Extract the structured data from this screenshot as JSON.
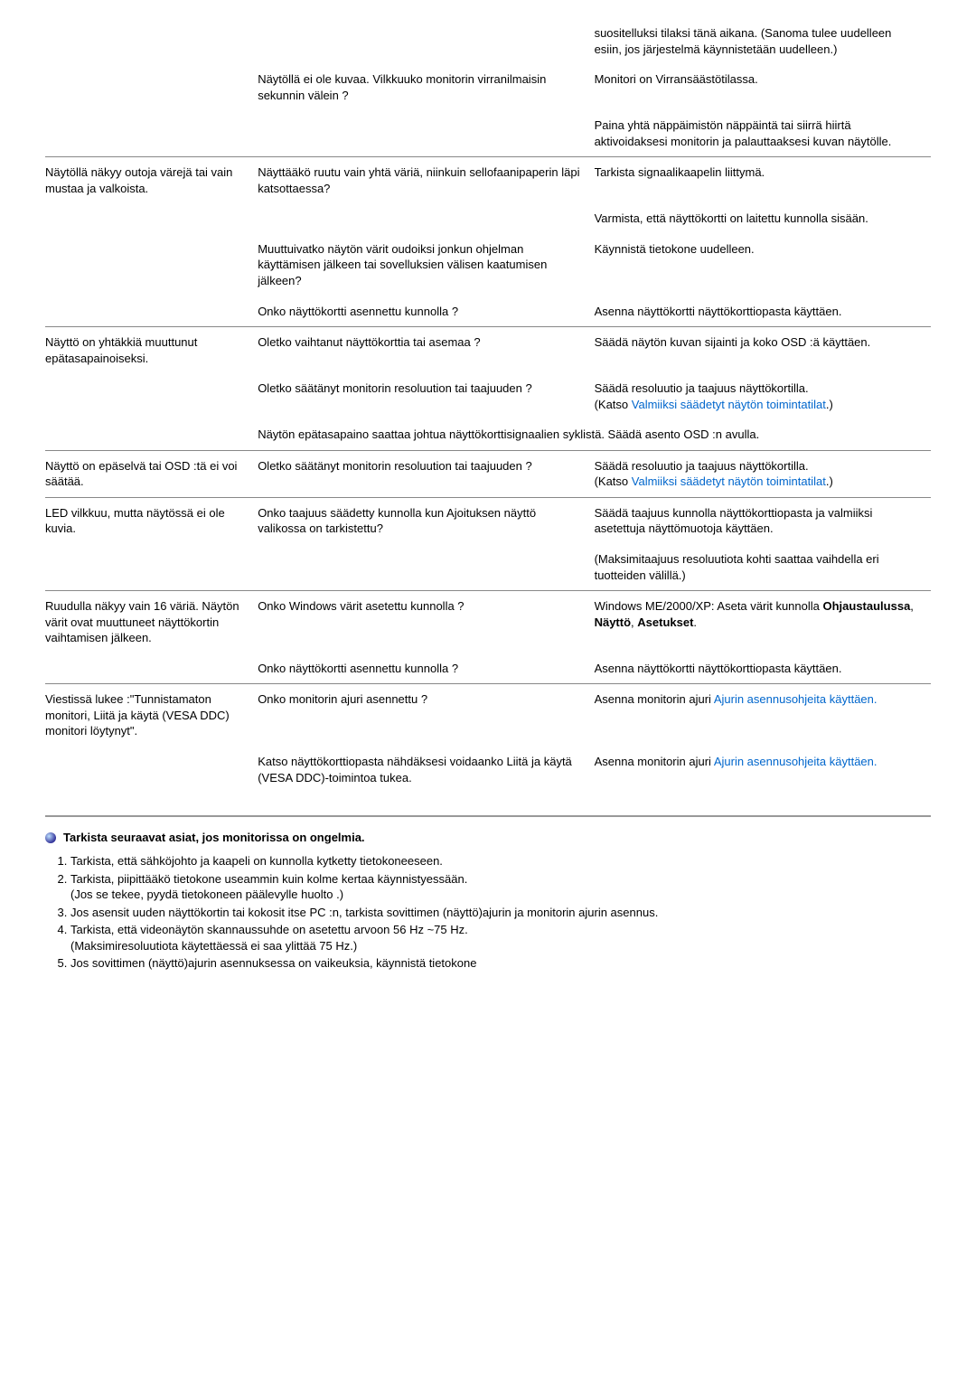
{
  "rows": [
    {
      "sep": false,
      "c1": "",
      "c2": "",
      "c3": "suositelluksi tilaksi tänä aikana. (Sanoma tulee uudelleen esiin, jos järjestelmä käynnistetään uudelleen.)"
    },
    {
      "sep": false,
      "c1": "",
      "c2": "Näytöllä ei ole kuvaa. Vilkkuuko monitorin virranilmaisin sekunnin välein ?",
      "c3": "Monitori on Virransäästötilassa."
    },
    {
      "sep": false,
      "c1": "",
      "c2": "",
      "c3": "Paina yhtä näppäimistön näppäintä tai siirrä hiirtä aktivoidaksesi monitorin ja palauttaaksesi kuvan näytölle."
    },
    {
      "sep": true,
      "c1": "Näytöllä näkyy outoja värejä tai vain mustaa ja valkoista.",
      "c2": "Näyttääkö ruutu vain yhtä väriä, niinkuin sellofaanipaperin läpi katsottaessa?",
      "c3": "Tarkista signaalikaapelin liittymä."
    },
    {
      "sep": false,
      "c1": "",
      "c2": "",
      "c3": "Varmista, että näyttökortti on laitettu kunnolla sisään."
    },
    {
      "sep": false,
      "c1": "",
      "c2": "Muuttuivatko näytön värit oudoiksi jonkun ohjelman käyttämisen jälkeen tai sovelluksien välisen kaatumisen jälkeen?",
      "c3": "Käynnistä tietokone uudelleen."
    },
    {
      "sep": false,
      "c1": "",
      "c2": "Onko näyttökortti asennettu kunnolla ?",
      "c3": "Asenna näyttökortti näyttökorttiopasta käyttäen."
    },
    {
      "sep": true,
      "c1": "Näyttö on yhtäkkiä muuttunut epätasapainoiseksi.",
      "c2": "Oletko vaihtanut näyttökorttia tai asemaa ?",
      "c3": "Säädä näytön kuvan sijainti ja koko OSD :ä käyttäen."
    },
    {
      "sep": false,
      "c1": "",
      "c2": "Oletko säätänyt monitorin resoluution tai taajuuden ?",
      "c3html": "Säädä resoluutio ja taajuus näyttökortilla.<br>(Katso <span class=\"blue\">Valmiiksi säädetyt näytön toimintatilat</span>.)"
    },
    {
      "sep": false,
      "c1": "",
      "c2span": "Näytön epätasapaino saattaa johtua näyttökorttisignaalien syklistä. Säädä asento OSD :n avulla."
    },
    {
      "sep": true,
      "c1": "Näyttö on epäselvä tai OSD :tä ei voi säätää.",
      "c2": "Oletko säätänyt monitorin resoluution tai taajuuden ?",
      "c3html": "Säädä resoluutio ja taajuus näyttökortilla.<br>(Katso <span class=\"blue\">Valmiiksi säädetyt näytön toimintatilat</span>.)"
    },
    {
      "sep": true,
      "c1": "LED vilkkuu, mutta näytössä ei ole kuvia.",
      "c2": "Onko taajuus säädetty kunnolla kun Ajoituksen näyttö valikossa on tarkistettu?",
      "c3": "Säädä taajuus kunnolla näyttökorttiopasta ja valmiiksi asetettuja näyttömuotoja käyttäen."
    },
    {
      "sep": false,
      "c1": "",
      "c2": "",
      "c3": "(Maksimitaajuus resoluutiota kohti saattaa vaihdella eri tuotteiden välillä.)"
    },
    {
      "sep": true,
      "c1": "Ruudulla näkyy vain 16 väriä. Näytön värit ovat muuttuneet näyttökortin vaihtamisen jälkeen.",
      "c2": "Onko Windows värit asetettu kunnolla ?",
      "c3html": "Windows ME/2000/XP: Aseta värit kunnolla <b>Ohjaustaulussa</b>, <b>Näyttö</b>, <b>Asetukset</b>."
    },
    {
      "sep": false,
      "c1": "",
      "c2": "Onko näyttökortti asennettu kunnolla ?",
      "c3": "Asenna näyttökortti näyttökorttiopasta käyttäen."
    },
    {
      "sep": true,
      "c1": "Viestissä lukee :\"Tunnistamaton monitori, Liitä ja käytä (VESA DDC) monitori löytynyt\".",
      "c2": "Onko monitorin ajuri asennettu ?",
      "c3html": "Asenna monitorin ajuri <span class=\"blue\">Ajurin asennusohjeita käyttäen.</span>"
    },
    {
      "sep": false,
      "c1": "",
      "c2": "Katso näyttökorttiopasta nähdäksesi voidaanko Liitä ja käytä (VESA DDC)-toimintoa tukea.",
      "c3html": "Asenna monitorin ajuri <span class=\"blue\">Ajurin asennusohjeita käyttäen.</span>"
    }
  ],
  "checkTitle": "Tarkista seuraavat asiat, jos monitorissa on ongelmia.",
  "checks": [
    "Tarkista, että sähköjohto ja kaapeli on kunnolla kytketty tietokoneeseen.",
    "Tarkista, piipittääkö tietokone useammin kuin kolme kertaa käynnistyessään.\n(Jos se tekee, pyydä tietokoneen päälevylle huolto .)",
    "Jos asensit uuden näyttökortin tai kokosit itse PC :n, tarkista sovittimen (näyttö)ajurin ja monitorin ajurin asennus.",
    "Tarkista, että videonäytön skannaussuhde on asetettu arvoon 56 Hz ~75 Hz.\n(Maksimiresoluutiota käytettäessä ei saa ylittää 75 Hz.)",
    "Jos sovittimen (näyttö)ajurin asennuksessa on vaikeuksia, käynnistä tietokone"
  ]
}
